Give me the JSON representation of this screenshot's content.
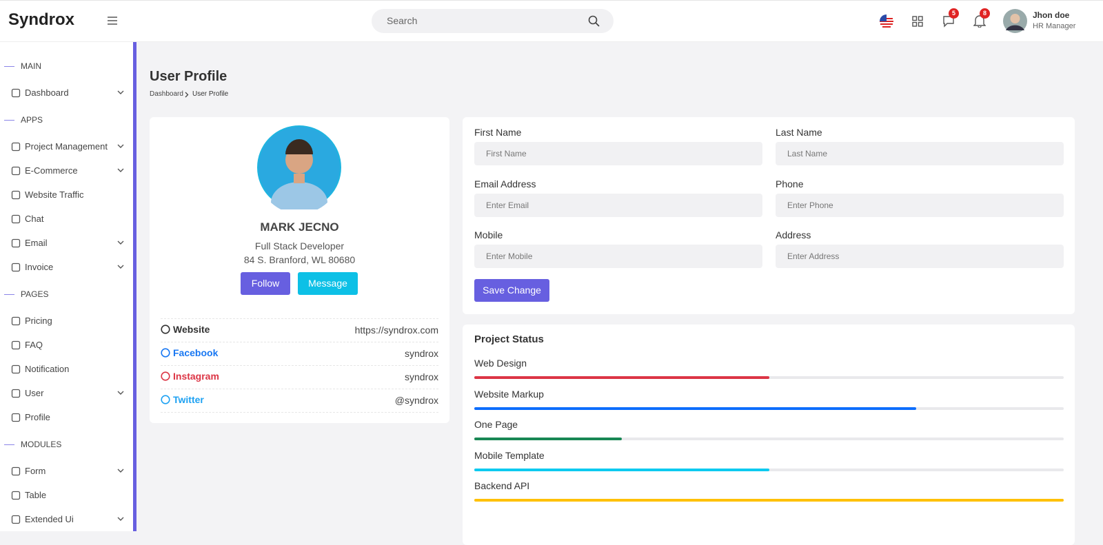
{
  "header": {
    "brand": "Syndrox",
    "search_placeholder": "Search",
    "messages_count": 5,
    "notifications_count": 8,
    "user": {
      "name": "Jhon doe",
      "role": "HR Manager"
    }
  },
  "sidebar": {
    "sections": [
      {
        "title": "MAIN",
        "items": [
          {
            "label": "Dashboard",
            "expandable": true
          }
        ]
      },
      {
        "title": "APPS",
        "items": [
          {
            "label": "Project Management",
            "expandable": true
          },
          {
            "label": "E-Commerce",
            "expandable": true
          },
          {
            "label": "Website Traffic",
            "expandable": false
          },
          {
            "label": "Chat",
            "expandable": false
          },
          {
            "label": "Email",
            "expandable": true
          },
          {
            "label": "Invoice",
            "expandable": true
          }
        ]
      },
      {
        "title": "PAGES",
        "items": [
          {
            "label": "Pricing",
            "expandable": false
          },
          {
            "label": "FAQ",
            "expandable": false
          },
          {
            "label": "Notification",
            "expandable": false
          },
          {
            "label": "User",
            "expandable": true
          },
          {
            "label": "Profile",
            "expandable": false
          }
        ]
      },
      {
        "title": "MODULES",
        "items": [
          {
            "label": "Form",
            "expandable": true
          },
          {
            "label": "Table",
            "expandable": false
          },
          {
            "label": "Extended Ui",
            "expandable": true
          }
        ]
      }
    ]
  },
  "page": {
    "title": "User Profile",
    "breadcrumb": [
      "Dashboard",
      "User Profile"
    ]
  },
  "profile": {
    "name": "MARK JECNO",
    "role": "Full Stack Developer",
    "address": "84 S. Branford, WL 80680",
    "buttons": [
      "Follow",
      "Message"
    ],
    "links": [
      {
        "label": "Website",
        "value": "https://syndrox.com",
        "color": "#333333"
      },
      {
        "label": "Facebook",
        "value": "syndrox",
        "color": "#1877f2"
      },
      {
        "label": "Instagram",
        "value": "syndrox",
        "color": "#dc3545"
      },
      {
        "label": "Twitter",
        "value": "@syndrox",
        "color": "#1da1f2"
      }
    ]
  },
  "form": {
    "fields": [
      {
        "label": "First Name",
        "placeholder": "First Name"
      },
      {
        "label": "Last Name",
        "placeholder": "Last Name"
      },
      {
        "label": "Email Address",
        "placeholder": "Enter Email"
      },
      {
        "label": "Phone",
        "placeholder": "Enter Phone"
      },
      {
        "label": "Mobile",
        "placeholder": "Enter Mobile"
      },
      {
        "label": "Address",
        "placeholder": "Enter Address"
      }
    ],
    "submit": "Save Change"
  },
  "project_status": {
    "title": "Project Status",
    "projects": [
      {
        "name": "Web Design",
        "value": 50,
        "color": "#dc3545"
      },
      {
        "name": "Website Markup",
        "value": 75,
        "color": "#0d6efd"
      },
      {
        "name": "One Page",
        "value": 25,
        "color": "#198754"
      },
      {
        "name": "Mobile Template",
        "value": 50,
        "color": "#0dcaf0"
      },
      {
        "name": "Backend API",
        "value": 100,
        "color": "#ffc107"
      }
    ]
  }
}
